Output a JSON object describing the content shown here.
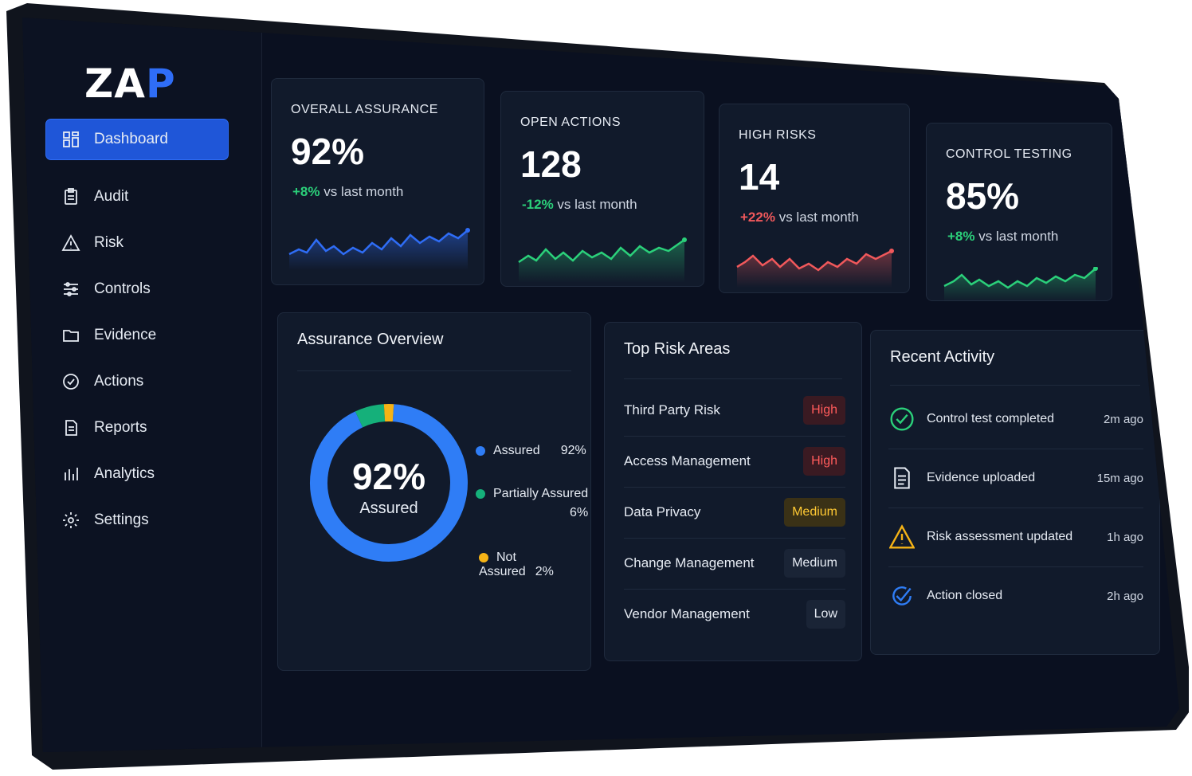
{
  "brand": {
    "logo_text_1": "ZA",
    "logo_text_2": "P"
  },
  "sidebar": {
    "items": [
      {
        "label": "Dashboard",
        "icon": "dashboard-icon",
        "active": true
      },
      {
        "label": "Audit",
        "icon": "clipboard-icon"
      },
      {
        "label": "Risk",
        "icon": "warning-icon"
      },
      {
        "label": "Controls",
        "icon": "sliders-icon"
      },
      {
        "label": "Evidence",
        "icon": "folder-icon"
      },
      {
        "label": "Actions",
        "icon": "check-circle-icon"
      },
      {
        "label": "Reports",
        "icon": "document-icon"
      },
      {
        "label": "Analytics",
        "icon": "bar-chart-icon"
      },
      {
        "label": "Settings",
        "icon": "gear-icon"
      }
    ]
  },
  "kpis": [
    {
      "title": "OVERALL ASSURANCE",
      "value": "92%",
      "delta": "+8%",
      "delta_suffix": "vs last month",
      "trend": "up",
      "color": "#2f6df6"
    },
    {
      "title": "OPEN ACTIONS",
      "value": "128",
      "delta": "-12%",
      "delta_suffix": "vs last month",
      "trend": "down",
      "color": "#2bd07a"
    },
    {
      "title": "HIGH RISKS",
      "value": "14",
      "delta": "+22%",
      "delta_suffix": "vs last month",
      "trend": "up",
      "color": "#f0585b"
    },
    {
      "title": "CONTROL TESTING",
      "value": "85%",
      "delta": "+8%",
      "delta_suffix": "vs last month",
      "trend": "up",
      "color": "#2bd07a"
    }
  ],
  "assurance": {
    "title": "Assurance Overview",
    "center_value": "92%",
    "center_label": "Assured",
    "legend": [
      {
        "label": "Assured",
        "value": "92%",
        "color": "#2f7df6"
      },
      {
        "label": "Partially Assured",
        "value": "6%",
        "color": "#15b07a"
      },
      {
        "label": "Not Assured",
        "value": "2%",
        "color": "#f5b316"
      }
    ]
  },
  "chart_data": {
    "type": "pie",
    "categories": [
      "Assured",
      "Partially Assured",
      "Not Assured"
    ],
    "values": [
      92,
      6,
      2
    ]
  },
  "risk_areas": {
    "title": "Top Risk Areas",
    "rows": [
      {
        "name": "Third Party Risk",
        "level": "High"
      },
      {
        "name": "Access Management",
        "level": "High"
      },
      {
        "name": "Data Privacy",
        "level": "Medium"
      },
      {
        "name": "Change Management",
        "level": "Medium"
      },
      {
        "name": "Vendor Management",
        "level": "Low"
      }
    ]
  },
  "activity": {
    "title": "Recent Activity",
    "rows": [
      {
        "text": "Control test completed",
        "time": "2m  ago",
        "icon": "check-circle-icon"
      },
      {
        "text": "Evidence uploaded",
        "time": "15m  ago",
        "icon": "document-icon"
      },
      {
        "text": "Risk assessment updated",
        "time": "1h  ago",
        "icon": "warning-icon"
      },
      {
        "text": "Action closed",
        "time": "2h  ago",
        "icon": "check-icon"
      }
    ]
  }
}
